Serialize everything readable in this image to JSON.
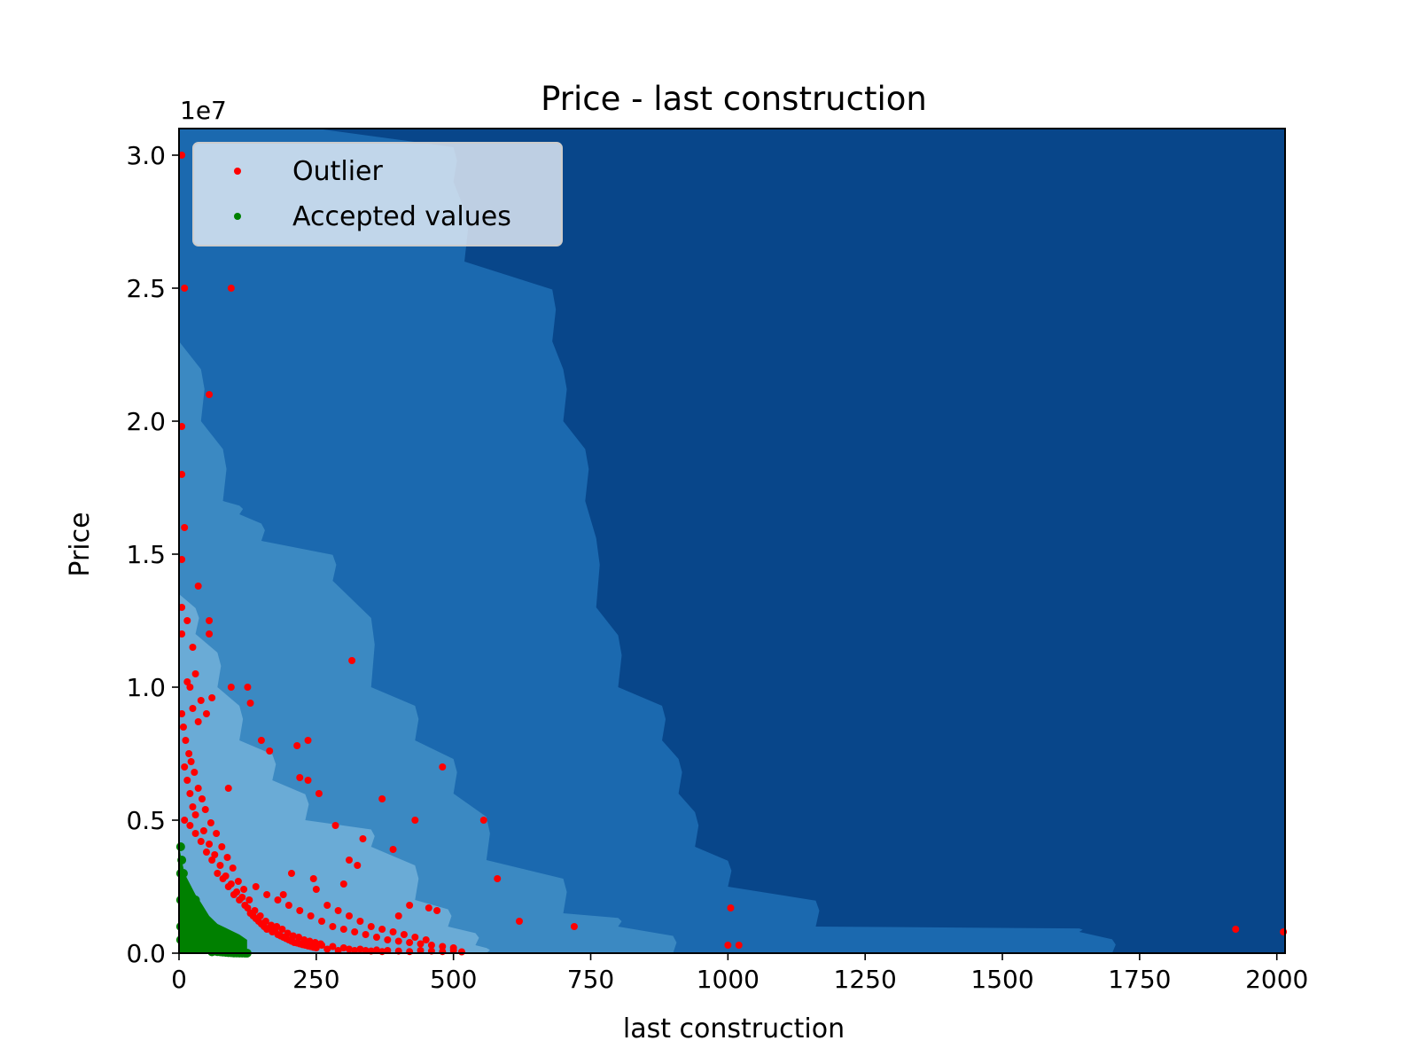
{
  "chart_data": {
    "type": "scatter",
    "title": "Price - last construction",
    "xlabel": "last construction",
    "ylabel": "Price",
    "y_offset_label": "1e7",
    "xlim": [
      0,
      2015
    ],
    "ylim": [
      0,
      31000000
    ],
    "x_ticks": [
      0,
      250,
      500,
      750,
      1000,
      1250,
      1500,
      1750,
      2000
    ],
    "x_tick_labels": [
      "0",
      "250",
      "500",
      "750",
      "1000",
      "1250",
      "1500",
      "1750",
      "2000"
    ],
    "y_ticks": [
      0,
      5000000,
      10000000,
      15000000,
      20000000,
      25000000,
      30000000
    ],
    "y_tick_labels": [
      "0.0",
      "0.5",
      "1.0",
      "1.5",
      "2.0",
      "2.5",
      "3.0"
    ],
    "legend_position": "top-left",
    "grid": false,
    "contour_colors": [
      "#08468a",
      "#1b69af",
      "#3b89c2",
      "#6aabd6"
    ],
    "contour_levels": [
      {
        "name": "level-1",
        "color": "#1b69af",
        "boundary": [
          [
            0,
            31000000
          ],
          [
            250,
            31000000
          ],
          [
            500,
            29000000
          ],
          [
            520,
            26000000
          ],
          [
            680,
            23000000
          ],
          [
            700,
            20000000
          ],
          [
            740,
            17000000
          ],
          [
            760,
            13000000
          ],
          [
            800,
            10000000
          ],
          [
            880,
            8000000
          ],
          [
            910,
            6000000
          ],
          [
            940,
            4000000
          ],
          [
            1000,
            2500000
          ],
          [
            1160,
            1000000
          ],
          [
            1640,
            800000
          ],
          [
            1700,
            0
          ]
        ]
      },
      {
        "name": "level-2",
        "color": "#3b89c2",
        "boundary": [
          [
            0,
            23000000
          ],
          [
            40,
            20000000
          ],
          [
            80,
            17000000
          ],
          [
            110,
            16500000
          ],
          [
            150,
            15500000
          ],
          [
            280,
            14000000
          ],
          [
            350,
            10000000
          ],
          [
            430,
            8000000
          ],
          [
            500,
            6000000
          ],
          [
            560,
            3500000
          ],
          [
            700,
            1500000
          ],
          [
            800,
            1000000
          ],
          [
            900,
            0
          ]
        ]
      },
      {
        "name": "level-3",
        "color": "#6aabd6",
        "boundary": [
          [
            0,
            13500000
          ],
          [
            30,
            12000000
          ],
          [
            70,
            10000000
          ],
          [
            110,
            8000000
          ],
          [
            170,
            6500000
          ],
          [
            230,
            5000000
          ],
          [
            350,
            4000000
          ],
          [
            430,
            2000000
          ],
          [
            490,
            1000000
          ],
          [
            540,
            300000
          ],
          [
            560,
            0
          ]
        ]
      }
    ],
    "series": [
      {
        "name": "Outlier",
        "color": "#ff0000",
        "points": [
          [
            5,
            30000000
          ],
          [
            10,
            25000000
          ],
          [
            95,
            25000000
          ],
          [
            55,
            21000000
          ],
          [
            5,
            19800000
          ],
          [
            5,
            18000000
          ],
          [
            10,
            16000000
          ],
          [
            5,
            14800000
          ],
          [
            35,
            13800000
          ],
          [
            55,
            12500000
          ],
          [
            55,
            12000000
          ],
          [
            315,
            11000000
          ],
          [
            95,
            10000000
          ],
          [
            125,
            10000000
          ],
          [
            20,
            10000000
          ],
          [
            60,
            9600000
          ],
          [
            130,
            9400000
          ],
          [
            150,
            8000000
          ],
          [
            235,
            8000000
          ],
          [
            480,
            7000000
          ],
          [
            165,
            7600000
          ],
          [
            215,
            7800000
          ],
          [
            220,
            6600000
          ],
          [
            90,
            6200000
          ],
          [
            255,
            6000000
          ],
          [
            235,
            6500000
          ],
          [
            370,
            5800000
          ],
          [
            430,
            5000000
          ],
          [
            555,
            5000000
          ],
          [
            335,
            4300000
          ],
          [
            285,
            4800000
          ],
          [
            390,
            3900000
          ],
          [
            310,
            3500000
          ],
          [
            325,
            3300000
          ],
          [
            205,
            3000000
          ],
          [
            245,
            2800000
          ],
          [
            190,
            2200000
          ],
          [
            300,
            2600000
          ],
          [
            250,
            2400000
          ],
          [
            455,
            1700000
          ],
          [
            470,
            1600000
          ],
          [
            400,
            1400000
          ],
          [
            420,
            1800000
          ],
          [
            580,
            2800000
          ],
          [
            620,
            1200000
          ],
          [
            720,
            1000000
          ],
          [
            1005,
            1700000
          ],
          [
            1000,
            300000
          ],
          [
            1020,
            300000
          ],
          [
            1925,
            900000
          ],
          [
            2012,
            800000
          ],
          [
            10,
            5000000
          ],
          [
            20,
            4800000
          ],
          [
            30,
            4500000
          ],
          [
            40,
            4200000
          ],
          [
            50,
            3800000
          ],
          [
            60,
            3500000
          ],
          [
            70,
            3000000
          ],
          [
            80,
            2800000
          ],
          [
            90,
            2500000
          ],
          [
            100,
            2200000
          ],
          [
            110,
            2000000
          ],
          [
            120,
            1800000
          ],
          [
            130,
            1500000
          ],
          [
            140,
            1300000
          ],
          [
            150,
            1100000
          ],
          [
            160,
            900000
          ],
          [
            170,
            800000
          ],
          [
            180,
            700000
          ],
          [
            190,
            600000
          ],
          [
            200,
            500000
          ],
          [
            210,
            400000
          ],
          [
            220,
            350000
          ],
          [
            230,
            300000
          ],
          [
            240,
            250000
          ],
          [
            250,
            200000
          ],
          [
            260,
            300000
          ],
          [
            270,
            150000
          ],
          [
            280,
            250000
          ],
          [
            290,
            100000
          ],
          [
            300,
            200000
          ],
          [
            310,
            150000
          ],
          [
            320,
            100000
          ],
          [
            330,
            150000
          ],
          [
            340,
            100000
          ],
          [
            350,
            80000
          ],
          [
            360,
            120000
          ],
          [
            370,
            60000
          ],
          [
            380,
            100000
          ],
          [
            400,
            80000
          ],
          [
            420,
            60000
          ],
          [
            440,
            100000
          ],
          [
            460,
            80000
          ],
          [
            480,
            60000
          ],
          [
            500,
            100000
          ],
          [
            515,
            50000
          ],
          [
            10,
            7000000
          ],
          [
            15,
            6500000
          ],
          [
            20,
            6000000
          ],
          [
            25,
            5500000
          ],
          [
            30,
            5200000
          ],
          [
            45,
            4600000
          ],
          [
            55,
            4100000
          ],
          [
            65,
            3700000
          ],
          [
            75,
            3300000
          ],
          [
            85,
            2900000
          ],
          [
            95,
            2600000
          ],
          [
            105,
            2300000
          ],
          [
            115,
            2100000
          ],
          [
            125,
            1700000
          ],
          [
            135,
            1400000
          ],
          [
            145,
            1200000
          ],
          [
            155,
            1000000
          ],
          [
            165,
            950000
          ],
          [
            175,
            850000
          ],
          [
            185,
            650000
          ],
          [
            195,
            550000
          ],
          [
            205,
            450000
          ],
          [
            215,
            380000
          ],
          [
            225,
            320000
          ],
          [
            235,
            270000
          ],
          [
            245,
            220000
          ],
          [
            5,
            9000000
          ],
          [
            8,
            8500000
          ],
          [
            12,
            8000000
          ],
          [
            18,
            7500000
          ],
          [
            22,
            7200000
          ],
          [
            28,
            6800000
          ],
          [
            35,
            6200000
          ],
          [
            42,
            5800000
          ],
          [
            48,
            5400000
          ],
          [
            58,
            4900000
          ],
          [
            68,
            4500000
          ],
          [
            78,
            4000000
          ],
          [
            88,
            3600000
          ],
          [
            98,
            3200000
          ],
          [
            108,
            2700000
          ],
          [
            118,
            2400000
          ],
          [
            128,
            2000000
          ],
          [
            138,
            1600000
          ],
          [
            148,
            1400000
          ],
          [
            158,
            1200000
          ],
          [
            168,
            1050000
          ],
          [
            178,
            1000000
          ],
          [
            188,
            900000
          ],
          [
            198,
            750000
          ],
          [
            208,
            650000
          ],
          [
            218,
            600000
          ],
          [
            228,
            500000
          ],
          [
            238,
            450000
          ],
          [
            248,
            400000
          ],
          [
            258,
            350000
          ],
          [
            140,
            2500000
          ],
          [
            160,
            2200000
          ],
          [
            180,
            2000000
          ],
          [
            200,
            1800000
          ],
          [
            220,
            1600000
          ],
          [
            240,
            1400000
          ],
          [
            260,
            1200000
          ],
          [
            280,
            1000000
          ],
          [
            300,
            900000
          ],
          [
            320,
            800000
          ],
          [
            340,
            700000
          ],
          [
            360,
            600000
          ],
          [
            380,
            500000
          ],
          [
            400,
            450000
          ],
          [
            420,
            400000
          ],
          [
            440,
            350000
          ],
          [
            460,
            300000
          ],
          [
            480,
            250000
          ],
          [
            500,
            200000
          ],
          [
            270,
            1800000
          ],
          [
            290,
            1600000
          ],
          [
            310,
            1400000
          ],
          [
            330,
            1200000
          ],
          [
            350,
            1000000
          ],
          [
            370,
            900000
          ],
          [
            390,
            800000
          ],
          [
            410,
            700000
          ],
          [
            430,
            600000
          ],
          [
            450,
            500000
          ],
          [
            5,
            12000000
          ],
          [
            5,
            13000000
          ],
          [
            15,
            12500000
          ],
          [
            25,
            11500000
          ],
          [
            30,
            10500000
          ],
          [
            40,
            9500000
          ],
          [
            50,
            9000000
          ],
          [
            25,
            9200000
          ],
          [
            35,
            8700000
          ],
          [
            15,
            10200000
          ]
        ]
      },
      {
        "name": "Accepted values",
        "color": "#008000",
        "points": [
          [
            3,
            4000000
          ],
          [
            5,
            3500000
          ],
          [
            8,
            3000000
          ],
          [
            12,
            2500000
          ],
          [
            15,
            2000000
          ],
          [
            18,
            1600000
          ],
          [
            22,
            1200000
          ],
          [
            26,
            900000
          ],
          [
            30,
            700000
          ],
          [
            35,
            500000
          ],
          [
            40,
            400000
          ],
          [
            45,
            300000
          ],
          [
            50,
            200000
          ],
          [
            55,
            150000
          ],
          [
            60,
            100000
          ],
          [
            65,
            80000
          ],
          [
            70,
            60000
          ],
          [
            75,
            50000
          ],
          [
            80,
            40000
          ],
          [
            85,
            30000
          ],
          [
            90,
            20000
          ],
          [
            95,
            15000
          ],
          [
            100,
            10000
          ],
          [
            105,
            8000
          ],
          [
            110,
            5000
          ],
          [
            115,
            3000
          ],
          [
            120,
            2000
          ],
          [
            124,
            1000
          ],
          [
            3,
            3000000
          ],
          [
            3,
            2000000
          ],
          [
            3,
            1000000
          ],
          [
            3,
            500000
          ],
          [
            8,
            2000000
          ],
          [
            8,
            1000000
          ],
          [
            12,
            1500000
          ],
          [
            12,
            500000
          ],
          [
            18,
            900000
          ],
          [
            25,
            600000
          ],
          [
            33,
            300000
          ],
          [
            45,
            150000
          ],
          [
            60,
            50000
          ],
          [
            30,
            2000000
          ],
          [
            40,
            1500000
          ],
          [
            50,
            1000000
          ],
          [
            60,
            600000
          ],
          [
            70,
            300000
          ],
          [
            80,
            200000
          ],
          [
            90,
            120000
          ],
          [
            100,
            80000
          ],
          [
            110,
            50000
          ],
          [
            120,
            20000
          ]
        ]
      }
    ],
    "legend": {
      "entries": [
        {
          "label": "Outlier",
          "color": "#ff0000"
        },
        {
          "label": "Accepted values",
          "color": "#008000"
        }
      ]
    }
  }
}
